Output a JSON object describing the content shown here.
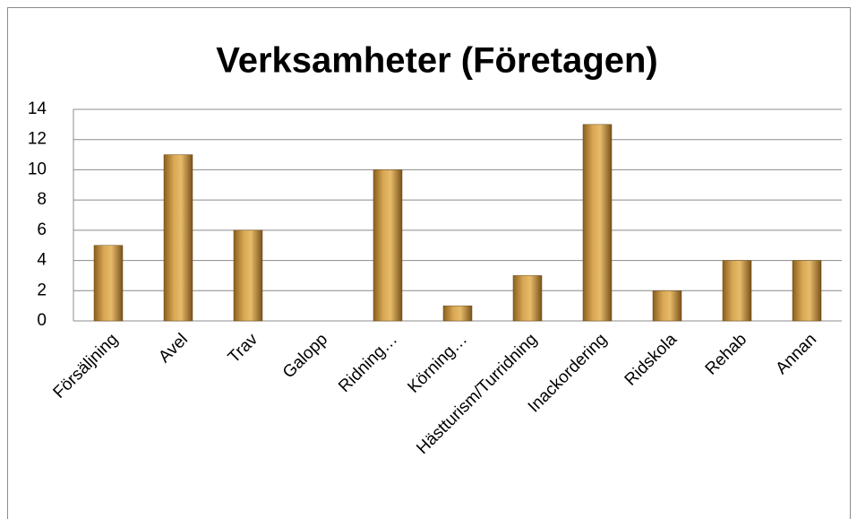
{
  "chart_data": {
    "type": "bar",
    "title": "Verksamheter (Företagen)",
    "categories": [
      "Försäljning",
      "Avel",
      "Trav",
      "Galopp",
      "Ridning…",
      "Körning…",
      "Hästturism/Turridning",
      "Inackordering",
      "Ridskola",
      "Rehab",
      "Annan"
    ],
    "values": [
      5,
      11,
      6,
      0,
      10,
      1,
      3,
      13,
      2,
      4,
      4
    ],
    "color": "#c8963e",
    "ylim": [
      0,
      14
    ],
    "yticks": [
      0,
      2,
      4,
      6,
      8,
      10,
      12,
      14
    ],
    "grid": true
  }
}
